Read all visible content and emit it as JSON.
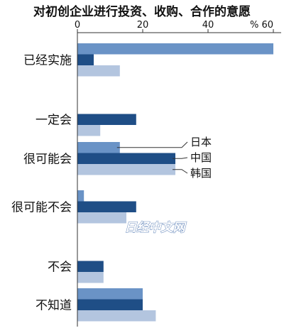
{
  "chart_data": {
    "type": "bar",
    "orientation": "horizontal",
    "title": "对初创企业进行投资、收购、合作的意愿",
    "unit_label": "%",
    "xlim": [
      0,
      60
    ],
    "xticks": [
      0,
      20,
      40,
      60
    ],
    "grid": false,
    "legend_placement": "inline-right",
    "categories": [
      "已经实施",
      "一定会",
      "很可能会",
      "很可能不会",
      "不会",
      "不知道"
    ],
    "series": [
      {
        "name": "日本",
        "color": "#6a93c6",
        "values": [
          60,
          0,
          13,
          2,
          0,
          20
        ]
      },
      {
        "name": "中国",
        "color": "#1f4e86",
        "values": [
          5,
          18,
          30,
          18,
          8,
          20
        ]
      },
      {
        "name": "韩国",
        "color": "#b3c5df",
        "values": [
          13,
          7,
          30,
          15,
          8,
          24
        ]
      }
    ]
  },
  "watermark": "日经中文网"
}
